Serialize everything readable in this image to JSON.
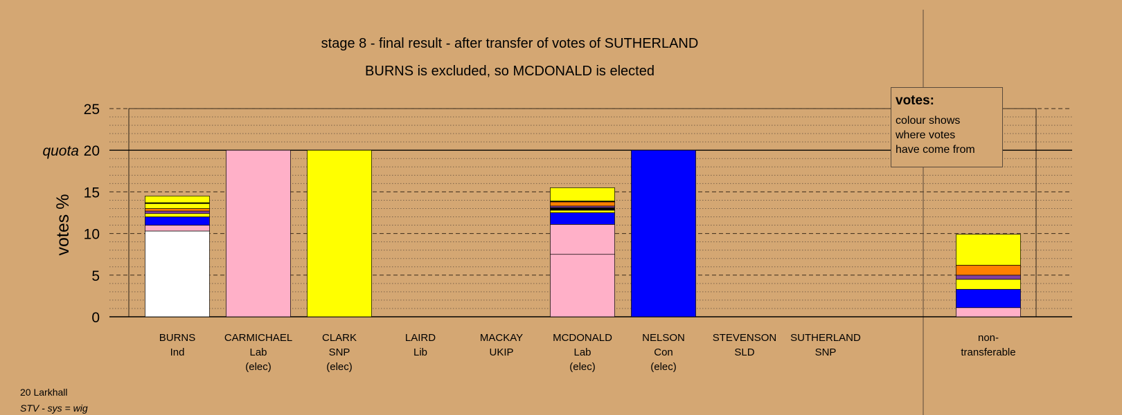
{
  "chart_data": {
    "type": "bar",
    "title": "stage 8 - final result - after transfer of votes of SUTHERLAND",
    "subtitle": "BURNS is excluded, so MCDONALD is elected",
    "ylabel": "votes %",
    "ylim": [
      0,
      25
    ],
    "yticks": [
      "0",
      "5",
      "10",
      "15",
      "20",
      "25"
    ],
    "quota": 20,
    "quota_label": "quota",
    "grid": true,
    "candidates": [
      {
        "name": "BURNS",
        "party": "Ind",
        "status": "",
        "segments": [
          {
            "value": 10.3,
            "color": "#ffffff"
          },
          {
            "value": 0.7,
            "color": "#ffb0c8"
          },
          {
            "value": 1.0,
            "color": "#0000ff"
          },
          {
            "value": 0.4,
            "color": "#ffff00"
          },
          {
            "value": 0.3,
            "color": "#8040a0"
          },
          {
            "value": 0.3,
            "color": "#ff8000"
          },
          {
            "value": 0.6,
            "color": "#ffff00"
          },
          {
            "value": 0.1,
            "color": "#000000"
          },
          {
            "value": 0.8,
            "color": "#ffff00"
          }
        ]
      },
      {
        "name": "CARMICHAEL",
        "party": "Lab",
        "status": "(elec)",
        "segments": [
          {
            "value": 20,
            "color": "#ffb0c8"
          }
        ]
      },
      {
        "name": "CLARK",
        "party": "SNP",
        "status": "(elec)",
        "segments": [
          {
            "value": 20,
            "color": "#ffff00"
          }
        ]
      },
      {
        "name": "LAIRD",
        "party": "Lib",
        "status": "",
        "segments": []
      },
      {
        "name": "MACKAY",
        "party": "UKIP",
        "status": "",
        "segments": []
      },
      {
        "name": "MCDONALD",
        "party": "Lab",
        "status": "(elec)",
        "segments": [
          {
            "value": 7.5,
            "color": "#ffb0c8"
          },
          {
            "value": 3.6,
            "color": "#ffb0c8"
          },
          {
            "value": 1.4,
            "color": "#0000ff"
          },
          {
            "value": 0.3,
            "color": "#ffff00"
          },
          {
            "value": 0.3,
            "color": "#000000"
          },
          {
            "value": 0.2,
            "color": "#8040a0"
          },
          {
            "value": 0.5,
            "color": "#ff8000"
          },
          {
            "value": 0.1,
            "color": "#000000"
          },
          {
            "value": 1.6,
            "color": "#ffff00"
          }
        ]
      },
      {
        "name": "NELSON",
        "party": "Con",
        "status": "(elec)",
        "segments": [
          {
            "value": 20,
            "color": "#0000ff"
          }
        ]
      },
      {
        "name": "STEVENSON",
        "party": "SLD",
        "status": "",
        "segments": []
      },
      {
        "name": "SUTHERLAND",
        "party": "SNP",
        "status": "",
        "segments": []
      }
    ],
    "nontransferable": {
      "label1": "non-",
      "label2": "transferable",
      "segments": [
        {
          "value": 1.1,
          "color": "#ffb0c8"
        },
        {
          "value": 2.2,
          "color": "#0000ff"
        },
        {
          "value": 1.2,
          "color": "#ffff00"
        },
        {
          "value": 0.5,
          "color": "#8040a0"
        },
        {
          "value": 1.2,
          "color": "#ff8000"
        },
        {
          "value": 3.7,
          "color": "#ffff00"
        }
      ]
    }
  },
  "legend": {
    "title": "votes:",
    "line1": "colour shows",
    "line2": "where votes",
    "line3": "have come from"
  },
  "footer": {
    "line1": "20 Larkhall",
    "line2": "STV - sys = wig"
  }
}
